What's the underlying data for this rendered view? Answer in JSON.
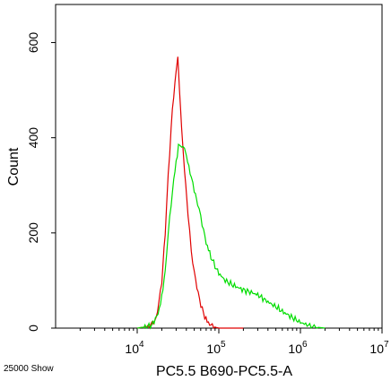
{
  "chart_data": {
    "type": "line",
    "xlabel": "PC5.5 B690-PC5.5-A",
    "ylabel": "Count",
    "x_scale": "log",
    "xlim": [
      1000,
      10000000
    ],
    "ylim": [
      0,
      680
    ],
    "x_ticks": [
      {
        "value": 10000,
        "base": "10",
        "exp": "4"
      },
      {
        "value": 100000,
        "base": "10",
        "exp": "5"
      },
      {
        "value": 1000000,
        "base": "10",
        "exp": "6"
      },
      {
        "value": 10000000,
        "base": "10",
        "exp": "7"
      }
    ],
    "y_ticks": [
      {
        "value": 0,
        "label": "0"
      },
      {
        "value": 200,
        "label": "200"
      },
      {
        "value": 400,
        "label": "400"
      },
      {
        "value": 600,
        "label": "600"
      }
    ],
    "footer_text": "25000 Show",
    "series": [
      {
        "color": "#e00000",
        "x": [
          10000,
          14000,
          17000,
          20000,
          22000,
          24000,
          26000,
          28000,
          30000,
          31500,
          33000,
          35000,
          38000,
          42000,
          46000,
          52000,
          58000,
          65000,
          72000,
          80000,
          90000,
          100000,
          130000,
          200000
        ],
        "y": [
          0,
          4,
          18,
          95,
          200,
          320,
          420,
          490,
          540,
          575,
          500,
          420,
          330,
          240,
          160,
          100,
          60,
          30,
          14,
          6,
          2,
          0,
          0,
          0
        ]
      },
      {
        "color": "#00dd00",
        "x": [
          10000,
          15000,
          18000,
          20000,
          22000,
          24000,
          26000,
          28000,
          30000,
          32000,
          35000,
          38000,
          40000,
          43000,
          46000,
          50000,
          55000,
          60000,
          65000,
          70000,
          80000,
          90000,
          100000,
          120000,
          150000,
          200000,
          250000,
          300000,
          400000,
          500000,
          600000,
          800000,
          1000000,
          1300000,
          1600000,
          2000000
        ],
        "y": [
          0,
          5,
          30,
          65,
          120,
          200,
          260,
          310,
          350,
          380,
          385,
          375,
          360,
          340,
          315,
          290,
          260,
          235,
          205,
          180,
          150,
          130,
          115,
          100,
          90,
          80,
          75,
          70,
          55,
          45,
          35,
          22,
          12,
          5,
          2,
          0
        ]
      }
    ]
  }
}
